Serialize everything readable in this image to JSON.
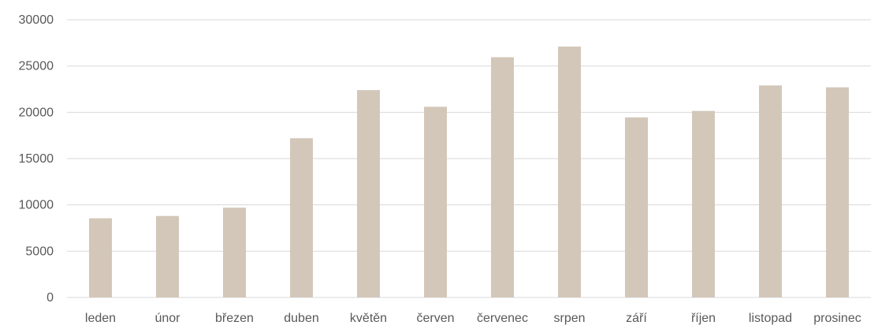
{
  "chart_data": {
    "type": "bar",
    "title": "",
    "xlabel": "",
    "ylabel": "",
    "categories": [
      "leden",
      "únor",
      "březen",
      "duben",
      "květěn",
      "červen",
      "červenec",
      "srpen",
      "září",
      "říjen",
      "listopad",
      "prosinec"
    ],
    "values": [
      8550,
      8800,
      9700,
      17200,
      22400,
      20600,
      25950,
      27100,
      19450,
      20150,
      22900,
      22700
    ],
    "ylim": [
      0,
      30000
    ],
    "yticks": [
      "0",
      "5000",
      "10000",
      "15000",
      "20000",
      "25000",
      "30000"
    ],
    "grid": true,
    "legend": "none",
    "bar_color": "#d3c7ba"
  }
}
